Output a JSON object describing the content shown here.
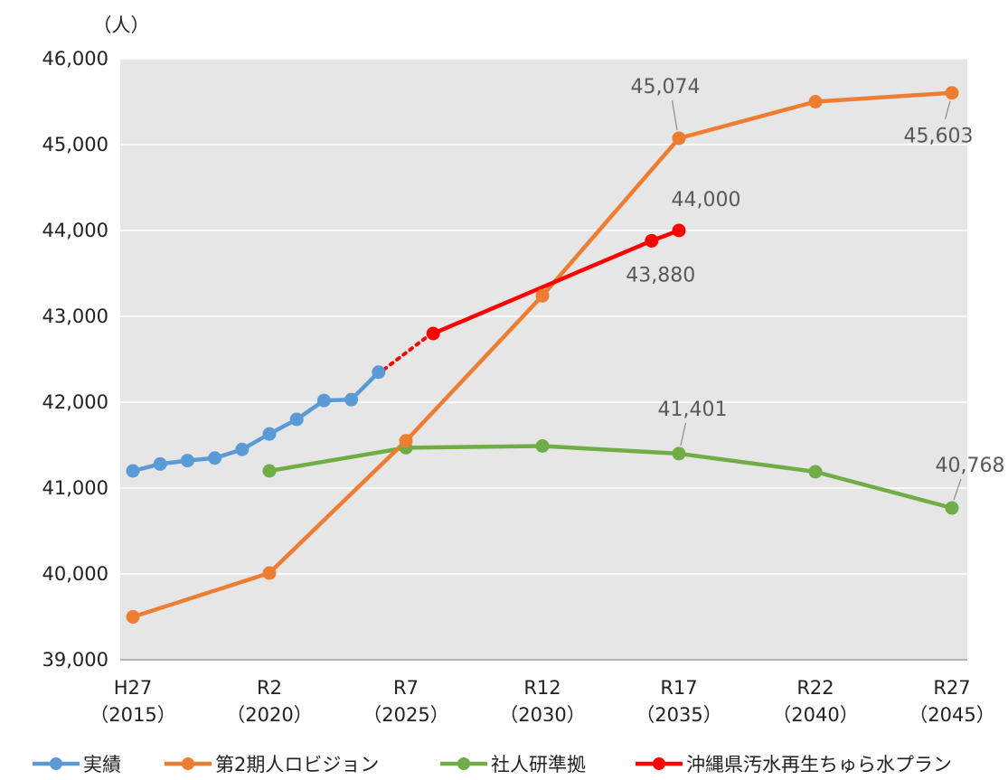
{
  "chart_data": {
    "type": "line",
    "unit_label": "（人）",
    "ylim": [
      39000,
      46000
    ],
    "y_ticks": [
      39000,
      40000,
      41000,
      42000,
      43000,
      44000,
      45000,
      46000
    ],
    "y_tick_labels": [
      "39,000",
      "40,000",
      "41,000",
      "42,000",
      "43,000",
      "44,000",
      "45,000",
      "46,000"
    ],
    "xlim": [
      2015,
      2045
    ],
    "x_ticks": [
      2015,
      2020,
      2025,
      2030,
      2035,
      2040,
      2045
    ],
    "x_tick_labels": [
      {
        "line1": "H27",
        "line2": "（2015）"
      },
      {
        "line1": "R2",
        "line2": "（2020）"
      },
      {
        "line1": "R7",
        "line2": "（2025）"
      },
      {
        "line1": "R12",
        "line2": "（2030）"
      },
      {
        "line1": "R17",
        "line2": "（2035）"
      },
      {
        "line1": "R22",
        "line2": "（2040）"
      },
      {
        "line1": "R27",
        "line2": "（2045）"
      }
    ],
    "grid": true,
    "plot_background": "#e6e6e6",
    "legend_position": "bottom",
    "series": [
      {
        "name": "実績",
        "color": "#5b9bd5",
        "x": [
          2015,
          2016,
          2017,
          2018,
          2019,
          2020,
          2021,
          2022,
          2023,
          2024
        ],
        "values": [
          41200,
          41280,
          41320,
          41350,
          41450,
          41630,
          41800,
          42020,
          42030,
          42350
        ]
      },
      {
        "name": "第2期人ロビジョン",
        "color": "#ed7d31",
        "x": [
          2015,
          2020,
          2025,
          2030,
          2035,
          2040,
          2045
        ],
        "values": [
          39500,
          40010,
          41550,
          43240,
          45074,
          45500,
          45603
        ]
      },
      {
        "name": "社人研準拠",
        "color": "#70ad47",
        "x": [
          2020,
          2025,
          2030,
          2035,
          2040,
          2045
        ],
        "values": [
          41200,
          41470,
          41490,
          41401,
          41190,
          40768
        ]
      },
      {
        "name": "沖縄県汚水再生ちゅら水プラン",
        "color": "#ff0000",
        "x": [
          2026,
          2034,
          2035
        ],
        "values": [
          42800,
          43880,
          44000
        ]
      }
    ],
    "connector": {
      "color": "#ff0000",
      "from": {
        "x": 2024,
        "y": 42350
      },
      "to": {
        "x": 2026,
        "y": 42800
      }
    },
    "annotations": [
      {
        "text": "45,074",
        "series": 1,
        "point": 4
      },
      {
        "text": "45,603",
        "series": 1,
        "point": 6
      },
      {
        "text": "44,000",
        "series": 3,
        "point": 2
      },
      {
        "text": "43,880",
        "series": 3,
        "point": 1
      },
      {
        "text": "41,401",
        "series": 2,
        "point": 3
      },
      {
        "text": "40,768",
        "series": 2,
        "point": 5
      }
    ]
  }
}
